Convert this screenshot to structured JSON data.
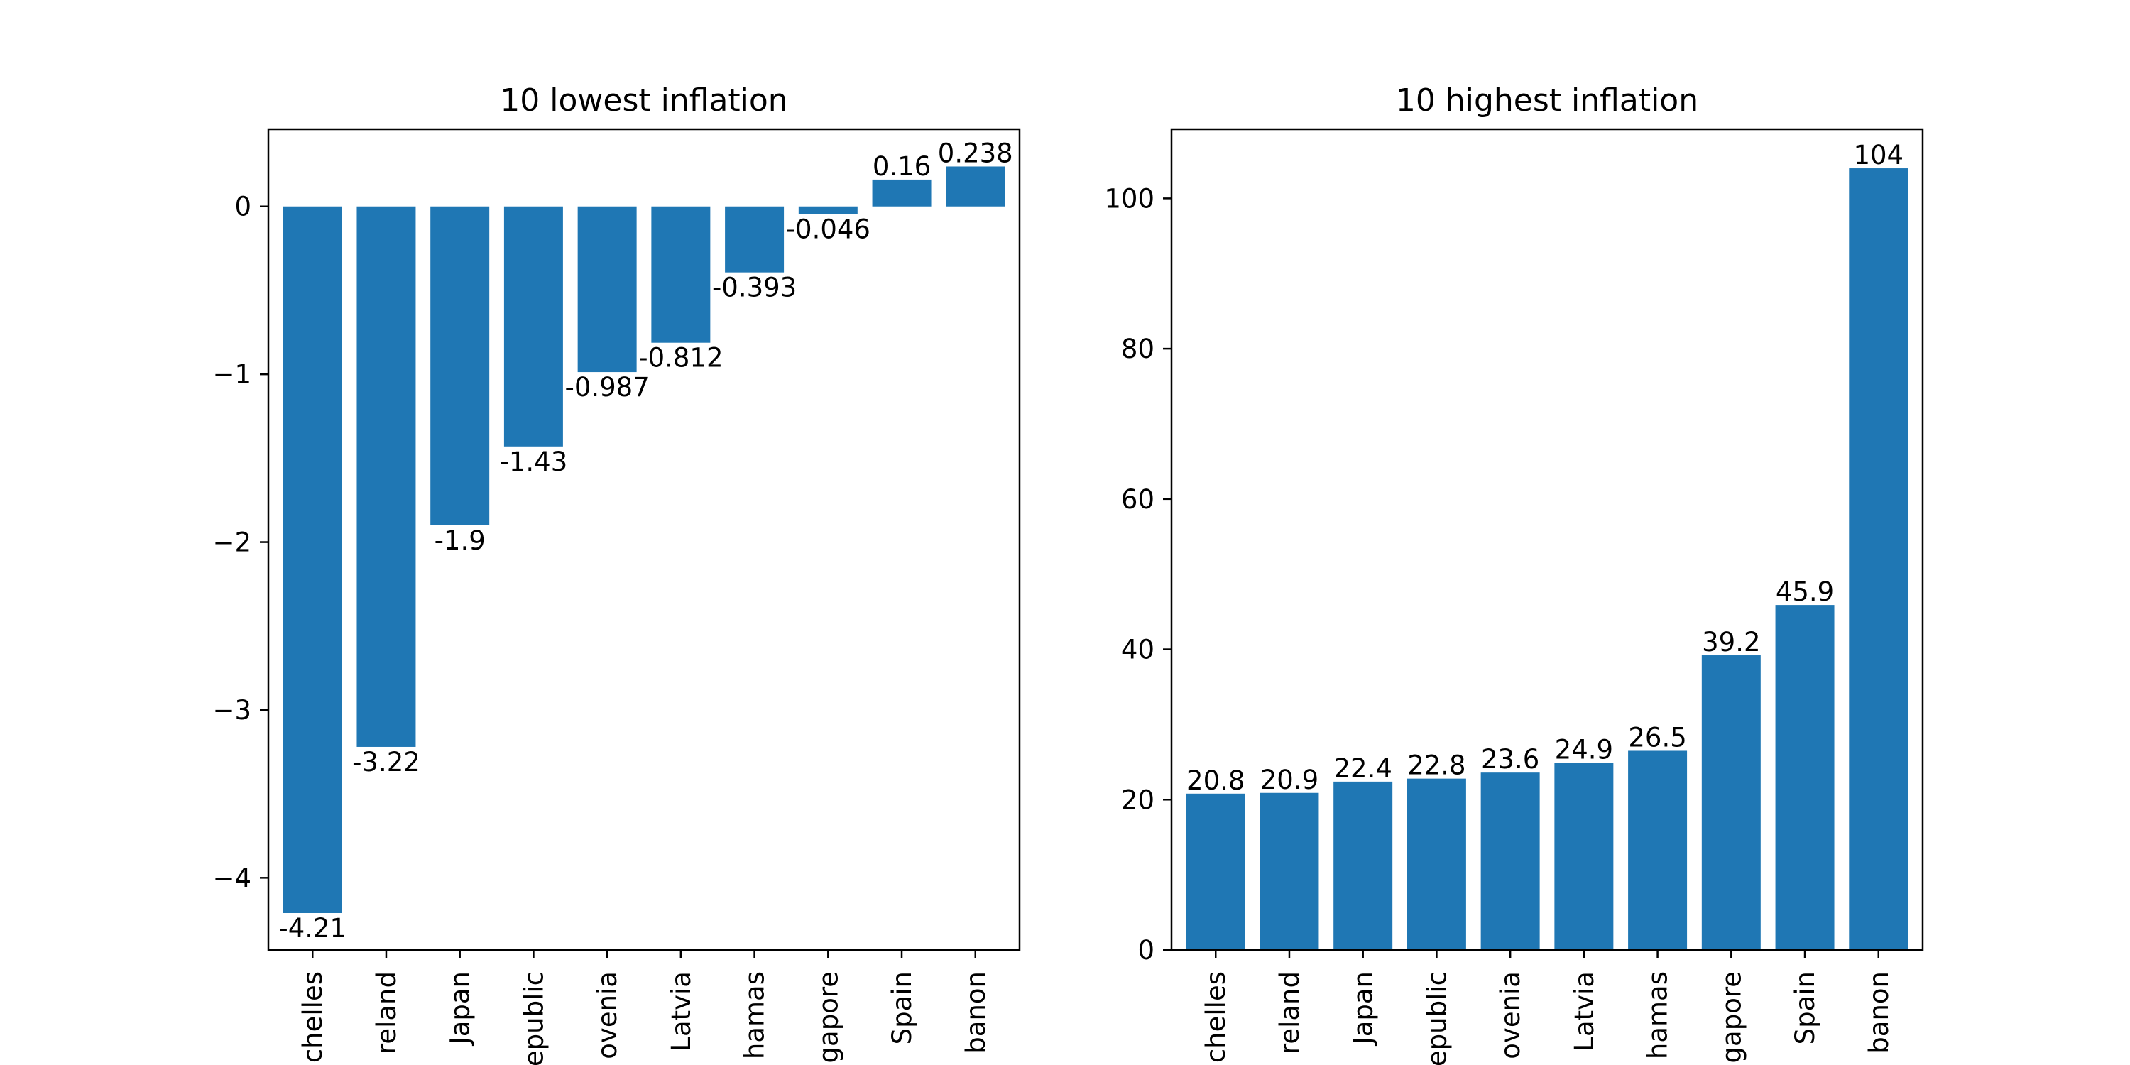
{
  "chart_data": [
    {
      "type": "bar",
      "title": "10 lowest inflation",
      "categories": [
        "chelles",
        "reland",
        "Japan",
        "epublic",
        "ovenia",
        "Latvia",
        "hamas",
        "gapore",
        "Spain",
        "banon"
      ],
      "values": [
        -4.21,
        -3.22,
        -1.9,
        -1.43,
        -0.987,
        -0.812,
        -0.393,
        -0.046,
        0.16,
        0.238
      ],
      "value_labels": [
        "-4.21",
        "-3.22",
        "-1.9",
        "-1.43",
        "-0.987",
        "-0.812",
        "-0.393",
        "-0.046",
        "0.16",
        "0.238"
      ],
      "yticks": [
        -4,
        -3,
        -2,
        -1,
        0
      ],
      "ytick_labels": [
        "−4",
        "−3",
        "−2",
        "−1",
        "0"
      ],
      "ylim": [
        -4.43,
        0.46
      ],
      "xlabel": "",
      "ylabel": "",
      "color": "#1f77b4",
      "grid": false,
      "legend": "none"
    },
    {
      "type": "bar",
      "title": "10 highest inflation",
      "categories": [
        "chelles",
        "reland",
        "Japan",
        "epublic",
        "ovenia",
        "Latvia",
        "hamas",
        "gapore",
        "Spain",
        "banon"
      ],
      "values": [
        20.8,
        20.9,
        22.4,
        22.8,
        23.6,
        24.9,
        26.5,
        39.2,
        45.9,
        104
      ],
      "value_labels": [
        "20.8",
        "20.9",
        "22.4",
        "22.8",
        "23.6",
        "24.9",
        "26.5",
        "39.2",
        "45.9",
        "104"
      ],
      "yticks": [
        0,
        20,
        40,
        60,
        80,
        100
      ],
      "ytick_labels": [
        "0",
        "20",
        "40",
        "60",
        "80",
        "100"
      ],
      "ylim": [
        0,
        109.2
      ],
      "xlabel": "",
      "ylabel": "",
      "color": "#1f77b4",
      "grid": false,
      "legend": "none"
    }
  ]
}
